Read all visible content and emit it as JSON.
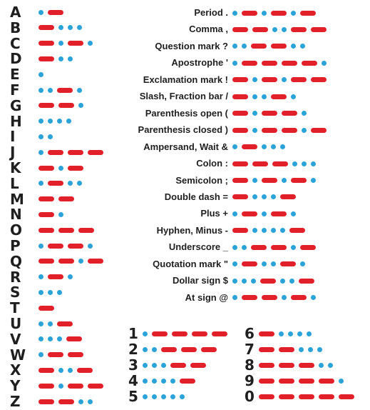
{
  "letters": [
    {
      "char": "A",
      "code": ".-"
    },
    {
      "char": "B",
      "code": "-..."
    },
    {
      "char": "C",
      "code": "-.-."
    },
    {
      "char": "D",
      "code": "-.."
    },
    {
      "char": "E",
      "code": "."
    },
    {
      "char": "F",
      "code": "..-."
    },
    {
      "char": "G",
      "code": "--."
    },
    {
      "char": "H",
      "code": "...."
    },
    {
      "char": "I",
      "code": ".."
    },
    {
      "char": "J",
      "code": ".---"
    },
    {
      "char": "K",
      "code": "-.-"
    },
    {
      "char": "L",
      "code": ".-.."
    },
    {
      "char": "M",
      "code": "--"
    },
    {
      "char": "N",
      "code": "-."
    },
    {
      "char": "O",
      "code": "---"
    },
    {
      "char": "P",
      "code": ".--."
    },
    {
      "char": "Q",
      "code": "--.-"
    },
    {
      "char": "R",
      "code": ".-."
    },
    {
      "char": "S",
      "code": "..."
    },
    {
      "char": "T",
      "code": "-"
    },
    {
      "char": "U",
      "code": "..-"
    },
    {
      "char": "V",
      "code": "...-"
    },
    {
      "char": "W",
      "code": ".--"
    },
    {
      "char": "X",
      "code": "-..-"
    },
    {
      "char": "Y",
      "code": "-.--"
    },
    {
      "char": "Z",
      "code": "--.."
    }
  ],
  "punctuation": [
    {
      "label": "Period .",
      "code": ".-.-.-"
    },
    {
      "label": "Comma ,",
      "code": "--..--"
    },
    {
      "label": "Question mark ?",
      "code": "..--.."
    },
    {
      "label": "Apostrophe '",
      "code": ".----."
    },
    {
      "label": "Exclamation mark !",
      "code": "-.-.--"
    },
    {
      "label": "Slash, Fraction bar /",
      "code": "-..-."
    },
    {
      "label": "Parenthesis open (",
      "code": "-.--."
    },
    {
      "label": "Parenthesis closed )",
      "code": "-.--.-"
    },
    {
      "label": "Ampersand, Wait &",
      "code": ".-..."
    },
    {
      "label": "Colon :",
      "code": "---..."
    },
    {
      "label": "Semicolon ;",
      "code": "-.-.-."
    },
    {
      "label": "Double dash =",
      "code": "-...-"
    },
    {
      "label": "Plus +",
      "code": ".-.-."
    },
    {
      "label": "Hyphen, Minus -",
      "code": "-....-"
    },
    {
      "label": "Underscore _",
      "code": "..--.-"
    },
    {
      "label": "Quotation mark \"",
      "code": ".-..-."
    },
    {
      "label": "Dollar sign $",
      "code": "...-..-"
    },
    {
      "label": "At sign @",
      "code": ".--.-."
    }
  ],
  "digits_left": [
    {
      "char": "1",
      "code": ".----"
    },
    {
      "char": "2",
      "code": "..---"
    },
    {
      "char": "3",
      "code": "...--"
    },
    {
      "char": "4",
      "code": "....-"
    },
    {
      "char": "5",
      "code": "....."
    }
  ],
  "digits_right": [
    {
      "char": "6",
      "code": "-...."
    },
    {
      "char": "7",
      "code": "--..."
    },
    {
      "char": "8",
      "code": "---.."
    },
    {
      "char": "9",
      "code": "----."
    },
    {
      "char": "0",
      "code": "-----"
    }
  ],
  "colors": {
    "dot": "#29a3d8",
    "dash": "#e2202a"
  }
}
